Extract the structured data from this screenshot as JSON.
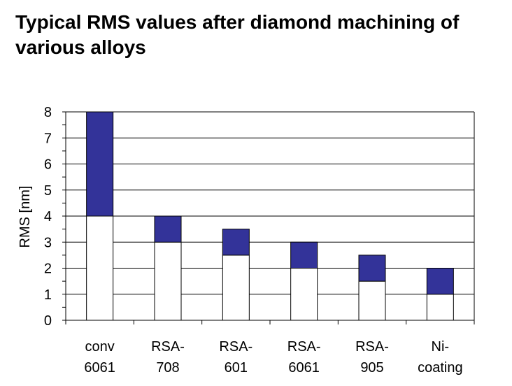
{
  "chart_data": {
    "type": "bar",
    "title": "Typical RMS values after diamond machining of\nvarious alloys",
    "ylabel": "RMS [nm]",
    "xlabel": "",
    "ylim": [
      0,
      8
    ],
    "yticks": [
      "0",
      "1",
      "2",
      "3",
      "4",
      "5",
      "6",
      "7",
      "8"
    ],
    "grid": true,
    "categories": [
      [
        "conv",
        "6061"
      ],
      [
        "RSA-",
        "708"
      ],
      [
        "RSA-",
        "601"
      ],
      [
        "RSA-",
        "6061"
      ],
      [
        "RSA-",
        "905"
      ],
      [
        "Ni-",
        "coating"
      ]
    ],
    "series": [
      {
        "values": [
          4,
          3,
          2.5,
          2,
          1.5,
          1
        ],
        "color": "#ffffff"
      },
      {
        "values": [
          4,
          1,
          1,
          1,
          1,
          1
        ],
        "color": "#333399"
      }
    ],
    "stacked": true
  }
}
